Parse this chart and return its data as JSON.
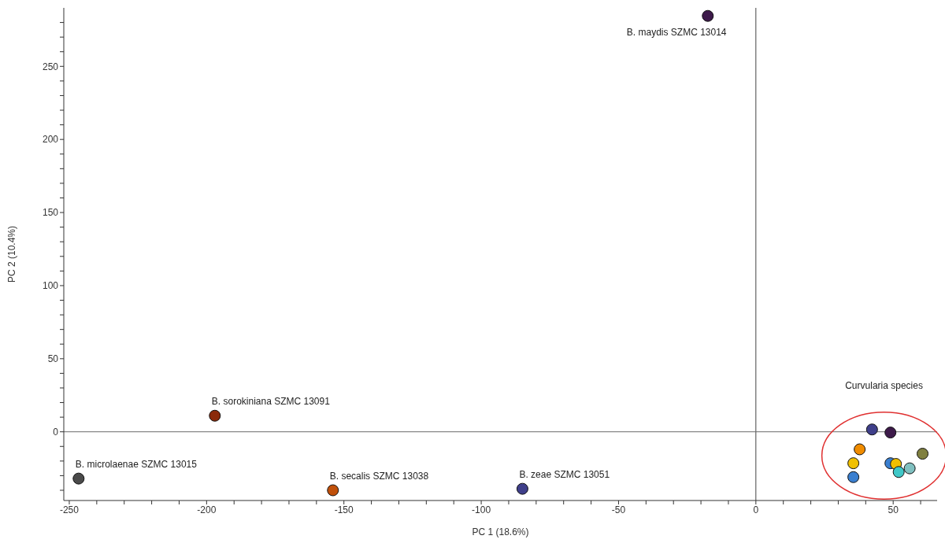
{
  "chart_data": {
    "type": "scatter",
    "xlabel": "PC 1 (18.6%)",
    "ylabel": "PC 2 (10.4%)",
    "x": [
      -17.5,
      -197,
      -246.6,
      -154,
      -85,
      42.3,
      49,
      37.8,
      35.5,
      35.5,
      49,
      51,
      52,
      56,
      60.7
    ],
    "values": [
      284.5,
      11,
      -32,
      -40,
      -39,
      1.6,
      -0.5,
      -12,
      -21.5,
      -31,
      -21.5,
      -22,
      -27.5,
      -25,
      -15
    ],
    "colors": [
      "#3d1a4a",
      "#8b2a0a",
      "#4a4a4a",
      "#c0500a",
      "#3f3f8a",
      "#3f3f8a",
      "#3d1a4a",
      "#f08c00",
      "#f0c000",
      "#3a7fd0",
      "#3a7fd0",
      "#f0c000",
      "#40c8c8",
      "#80c0c0",
      "#808040"
    ],
    "marker": "circle",
    "xlim": [
      -252,
      66
    ],
    "ylim": [
      -47,
      290
    ],
    "xticks": [
      -250,
      {
        "value": -240,
        "label": null
      },
      {
        "value": -230,
        "label": null
      },
      {
        "value": -220,
        "label": null
      },
      {
        "value": -210,
        "label": null
      },
      -200,
      {
        "value": -190,
        "label": null
      },
      {
        "value": -180,
        "label": null
      },
      {
        "value": -170,
        "label": null
      },
      {
        "value": -160,
        "label": null
      },
      -150,
      {
        "value": -140,
        "label": null
      },
      {
        "value": -130,
        "label": null
      },
      {
        "value": -120,
        "label": null
      },
      {
        "value": -110,
        "label": null
      },
      -100,
      {
        "value": -90,
        "label": null
      },
      {
        "value": -80,
        "label": null
      },
      {
        "value": -70,
        "label": null
      },
      {
        "value": -60,
        "label": null
      },
      -50,
      {
        "value": -40,
        "label": null
      },
      {
        "value": -30,
        "label": null
      },
      {
        "value": -20,
        "label": null
      },
      {
        "value": -10,
        "label": null
      },
      0,
      {
        "value": 10,
        "label": null
      },
      {
        "value": 20,
        "label": null
      },
      {
        "value": 30,
        "label": null
      },
      {
        "value": 40,
        "label": null
      },
      50,
      {
        "value": 60,
        "label": null
      }
    ],
    "yticks": [
      {
        "value": -40,
        "label": null
      },
      {
        "value": -30,
        "label": null
      },
      {
        "value": -20,
        "label": null
      },
      {
        "value": -10,
        "label": null
      },
      0,
      {
        "value": 10,
        "label": null
      },
      {
        "value": 20,
        "label": null
      },
      {
        "value": 30,
        "label": null
      },
      {
        "value": 40,
        "label": null
      },
      50,
      {
        "value": 60,
        "label": null
      },
      {
        "value": 70,
        "label": null
      },
      {
        "value": 80,
        "label": null
      },
      {
        "value": 90,
        "label": null
      },
      100,
      {
        "value": 110,
        "label": null
      },
      {
        "value": 120,
        "label": null
      },
      {
        "value": 130,
        "label": null
      },
      {
        "value": 140,
        "label": null
      },
      150,
      {
        "value": 160,
        "label": null
      },
      {
        "value": 170,
        "label": null
      },
      {
        "value": 180,
        "label": null
      },
      {
        "value": 190,
        "label": null
      },
      200,
      {
        "value": 210,
        "label": null
      },
      {
        "value": 220,
        "label": null
      },
      {
        "value": 230,
        "label": null
      },
      {
        "value": 240,
        "label": null
      },
      250,
      {
        "value": 260,
        "label": null
      },
      {
        "value": 270,
        "label": null
      },
      {
        "value": 280,
        "label": null
      }
    ],
    "ref_lines": [
      {
        "axis": "x",
        "value": 0,
        "color": "#444444"
      },
      {
        "axis": "y",
        "value": 0,
        "color": "#6a6a6a"
      }
    ],
    "grid": false,
    "legend": false,
    "annotations": [
      {
        "text": "B. maydis SZMC 13014",
        "x": -17.5,
        "y": 284.5
      },
      {
        "text": "B. sorokiniana SZMC 13091",
        "x": -197,
        "y": 11
      },
      {
        "text": "B. microlaenae SZMC 13015",
        "x": -246.6,
        "y": -32
      },
      {
        "text": "B. secalis SZMC 13038",
        "x": -154,
        "y": -40
      },
      {
        "text": "B. zeae SZMC 13051",
        "x": -85,
        "y": -39
      },
      "Curvularia species"
    ]
  }
}
